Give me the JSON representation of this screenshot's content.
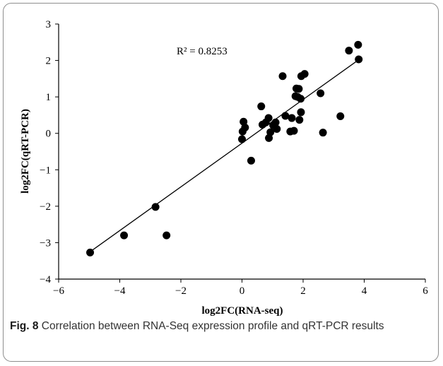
{
  "caption": {
    "label": "Fig. 8",
    "text": " Correlation between RNA-Seq expression profile and qRT-PCR results"
  },
  "chart_data": {
    "type": "scatter",
    "title": "",
    "xlabel": "log2FC(RNA-seq)",
    "ylabel": "log2FC(qRT-PCR)",
    "xlim": [
      -6,
      6
    ],
    "ylim": [
      -4,
      3
    ],
    "x_ticks": [
      -6,
      -4,
      -2,
      0,
      2,
      4,
      6
    ],
    "y_ticks": [
      -4,
      -3,
      -2,
      -1,
      0,
      1,
      2,
      3
    ],
    "grid": false,
    "annotation": "R²  = 0.8253",
    "trendline": {
      "x": [
        -4.97,
        3.82
      ],
      "y": [
        -3.25,
        2.02
      ]
    },
    "colors": {
      "points": "#000000",
      "line": "#000000"
    },
    "points": [
      {
        "x": -4.97,
        "y": -3.27
      },
      {
        "x": -3.86,
        "y": -2.8
      },
      {
        "x": -2.83,
        "y": -2.02
      },
      {
        "x": -2.47,
        "y": -2.8
      },
      {
        "x": 0.0,
        "y": -0.16
      },
      {
        "x": 0.02,
        "y": 0.05
      },
      {
        "x": 0.05,
        "y": 0.32
      },
      {
        "x": 0.1,
        "y": 0.16
      },
      {
        "x": 0.3,
        "y": -0.75
      },
      {
        "x": 0.63,
        "y": 0.74
      },
      {
        "x": 0.67,
        "y": 0.24
      },
      {
        "x": 0.78,
        "y": 0.3
      },
      {
        "x": 0.87,
        "y": 0.42
      },
      {
        "x": 0.88,
        "y": -0.13
      },
      {
        "x": 0.93,
        "y": 0.03
      },
      {
        "x": 1.02,
        "y": 0.22
      },
      {
        "x": 1.1,
        "y": 0.3
      },
      {
        "x": 1.14,
        "y": 0.12
      },
      {
        "x": 1.33,
        "y": 1.57
      },
      {
        "x": 1.42,
        "y": 0.48
      },
      {
        "x": 1.58,
        "y": 0.05
      },
      {
        "x": 1.63,
        "y": 0.42
      },
      {
        "x": 1.7,
        "y": 0.07
      },
      {
        "x": 1.75,
        "y": 1.02
      },
      {
        "x": 1.78,
        "y": 1.23
      },
      {
        "x": 1.82,
        "y": 1.0
      },
      {
        "x": 1.86,
        "y": 1.22
      },
      {
        "x": 1.88,
        "y": 0.37
      },
      {
        "x": 1.92,
        "y": 0.95
      },
      {
        "x": 1.93,
        "y": 0.58
      },
      {
        "x": 1.94,
        "y": 1.57
      },
      {
        "x": 2.05,
        "y": 1.63
      },
      {
        "x": 2.57,
        "y": 1.1
      },
      {
        "x": 2.65,
        "y": 0.02
      },
      {
        "x": 3.22,
        "y": 0.47
      },
      {
        "x": 3.5,
        "y": 2.27
      },
      {
        "x": 3.8,
        "y": 2.43
      },
      {
        "x": 3.82,
        "y": 2.03
      }
    ]
  }
}
